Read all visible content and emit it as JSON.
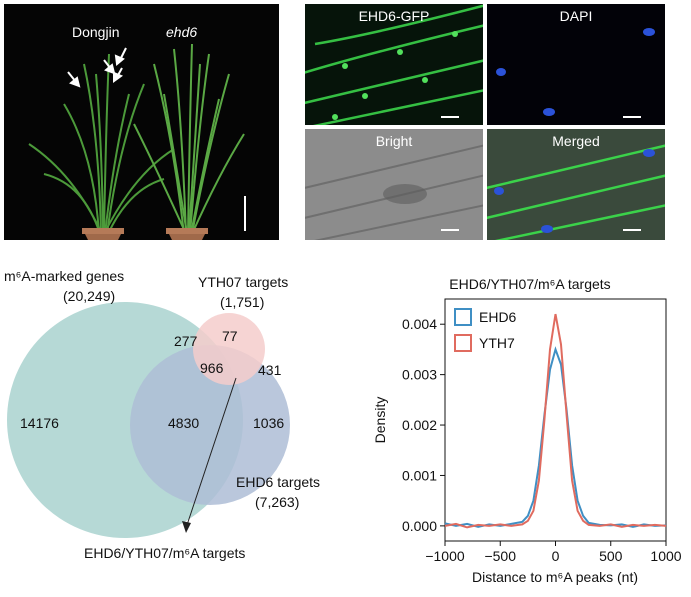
{
  "plant_panel": {
    "label_left": "Dongjin",
    "label_right": "ehd6"
  },
  "micro_panels": [
    {
      "label": "EHD6-GFP"
    },
    {
      "label": "DAPI"
    },
    {
      "label": "Bright"
    },
    {
      "label": "Merged"
    }
  ],
  "venn": {
    "m6a_title": "m⁶A-marked genes",
    "m6a_count": "(20,249)",
    "yth_title": "YTH07 targets",
    "yth_count": "(1,751)",
    "ehd_title": "EHD6 targets",
    "ehd_count": "(7,263)",
    "values": {
      "m6a_only": "14176",
      "m6a_ehd": "4830",
      "m6a_yth": "277",
      "yth_only": "77",
      "all_three": "966",
      "yth_ehd": "431",
      "ehd_only": "1036"
    },
    "arrow_label": "EHD6/YTH07/m⁶A targets",
    "colors": {
      "m6a": "#b6d9d6",
      "yth": "#f5cdcb",
      "ehd": "#aebdd6"
    }
  },
  "chart_data": {
    "type": "line",
    "title": "EHD6/YTH07/m⁶A targets",
    "xlabel": "Distance to m⁶A peaks (nt)",
    "ylabel": "Density",
    "xlim": [
      -1000,
      1000
    ],
    "ylim": [
      -0.0003,
      0.0045
    ],
    "xticks": [
      -1000,
      -500,
      0,
      500,
      1000
    ],
    "xtick_labels": [
      "−1000",
      "−500",
      "0",
      "500",
      "1000"
    ],
    "yticks": [
      0.0,
      0.001,
      0.002,
      0.003,
      0.004
    ],
    "ytick_labels": [
      "0.000",
      "0.001",
      "0.002",
      "0.003",
      "0.004"
    ],
    "legend_position": "top-left",
    "series": [
      {
        "name": "EHD6",
        "color": "#3f8fc4",
        "x": [
          -1000,
          -900,
          -800,
          -700,
          -600,
          -500,
          -400,
          -300,
          -250,
          -200,
          -150,
          -100,
          -50,
          0,
          50,
          100,
          150,
          200,
          250,
          300,
          400,
          500,
          600,
          700,
          800,
          900,
          1000
        ],
        "y": [
          5e-05,
          0.0,
          4e-05,
          -2e-05,
          3e-05,
          0.0,
          4e-05,
          8e-05,
          0.0002,
          0.0005,
          0.0012,
          0.0022,
          0.0031,
          0.0035,
          0.0032,
          0.0023,
          0.0012,
          0.0005,
          0.0002,
          6e-05,
          2e-05,
          1e-05,
          3e-05,
          -2e-05,
          3e-05,
          0.0,
          1e-05
        ]
      },
      {
        "name": "YTH7",
        "color": "#e06b5f",
        "x": [
          -1000,
          -900,
          -800,
          -700,
          -600,
          -500,
          -400,
          -300,
          -250,
          -200,
          -150,
          -100,
          -50,
          0,
          50,
          100,
          150,
          200,
          250,
          300,
          400,
          500,
          600,
          700,
          800,
          900,
          1000
        ],
        "y": [
          0.0,
          4e-05,
          -3e-05,
          2e-05,
          0.0,
          3e-05,
          0.0,
          3e-05,
          0.0001,
          0.0003,
          0.0009,
          0.0021,
          0.0035,
          0.0042,
          0.0036,
          0.0022,
          0.0009,
          0.0003,
          0.0001,
          2e-05,
          0.0,
          3e-05,
          -2e-05,
          2e-05,
          0.0,
          2e-05,
          0.0
        ]
      }
    ]
  }
}
